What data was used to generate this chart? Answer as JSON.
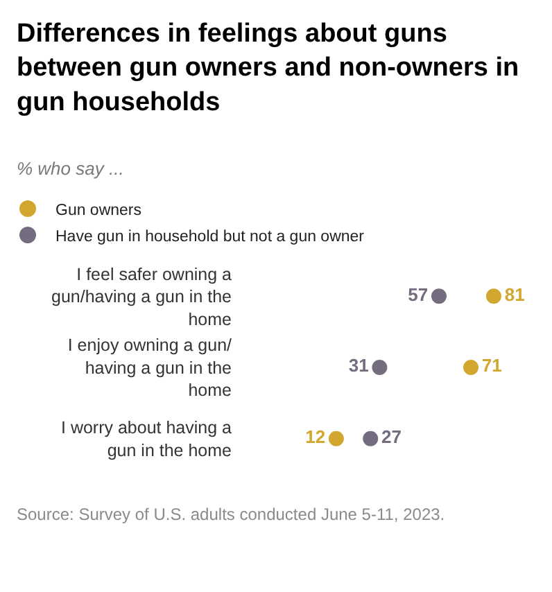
{
  "chart_data": {
    "type": "scatter",
    "title": "Differences in feelings about guns between gun owners and non-owners in gun households",
    "subtitle": "% who say ...",
    "categories": [
      "I feel safer owning a gun/having a gun in the home",
      "I enjoy owning a gun/having a gun in the home",
      "I worry about having a gun in the home"
    ],
    "series": [
      {
        "name": "Gun owners",
        "color": "#d1a730",
        "values": [
          81,
          71,
          12
        ]
      },
      {
        "name": "Have gun in household but not a gun owner",
        "color": "#756c80",
        "values": [
          57,
          31,
          27
        ]
      }
    ],
    "orientation": "horizontal",
    "tick_labels": "y",
    "data_labels": true,
    "marker": "circle",
    "legend": "top",
    "annotations": [
      "Source: Survey of U.S. adults conducted June 5-11, 2023."
    ]
  }
}
